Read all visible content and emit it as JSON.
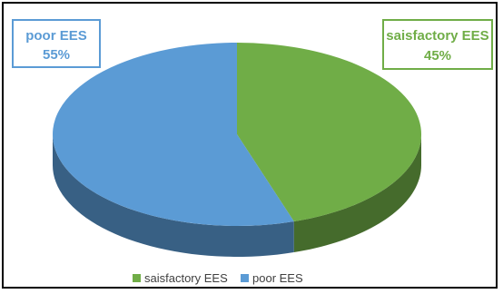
{
  "chart_data": {
    "type": "pie",
    "slices": [
      {
        "label": "saisfactory EES",
        "value": 45,
        "color": "#70ad47"
      },
      {
        "label": "poor EES",
        "value": 55,
        "color": "#5b9bd5"
      }
    ],
    "data_labels": [
      {
        "name": "poor EES",
        "value": "55%"
      },
      {
        "name": "saisfactory EES",
        "value": "45%"
      }
    ],
    "legend": {
      "placement": "bottom",
      "entries": [
        "saisfactory EES",
        "poor EES"
      ]
    },
    "style": "3d"
  }
}
